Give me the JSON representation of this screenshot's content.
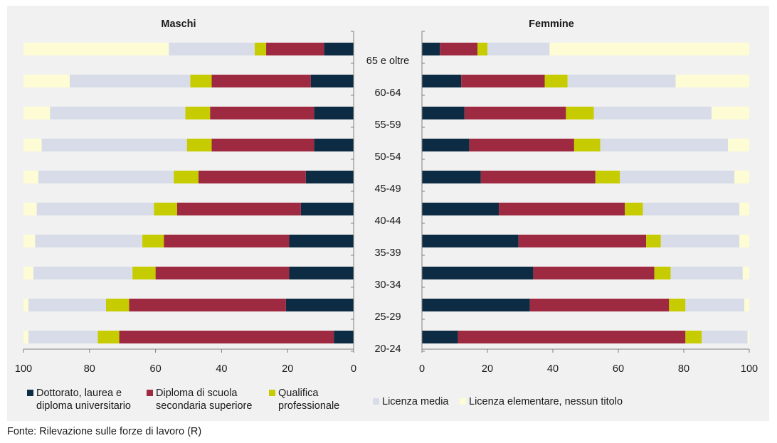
{
  "chart_data": [
    {
      "type": "bar",
      "orientation": "horizontal",
      "stacked": true,
      "title": "Maschi",
      "direction": "right-to-left",
      "categories": [
        "65 e oltre",
        "60-64",
        "55-59",
        "50-54",
        "45-49",
        "40-44",
        "35-39",
        "30-34",
        "25-29",
        "20-24"
      ],
      "xlim": [
        0,
        100
      ],
      "xticks": [
        "100",
        "80",
        "60",
        "40",
        "20",
        "0"
      ],
      "series": [
        {
          "name": "Dottorato, laurea e diploma universitario",
          "values": [
            9,
            13,
            12,
            12,
            14.5,
            16,
            19.5,
            19.5,
            20.5,
            6
          ]
        },
        {
          "name": "Diploma di scuola secondaria superiore",
          "values": [
            17.5,
            30,
            31.5,
            31,
            32.5,
            37.5,
            38,
            40.5,
            47.5,
            65
          ]
        },
        {
          "name": "Qualifica professionale",
          "values": [
            3.5,
            6.5,
            7.5,
            7.5,
            7.5,
            7,
            6.5,
            7,
            7,
            6.5
          ]
        },
        {
          "name": "Licenza media",
          "values": [
            26,
            36.5,
            41,
            44,
            41,
            35.5,
            32.5,
            30,
            23.5,
            21
          ]
        },
        {
          "name": "Licenza elementare, nessun titolo",
          "values": [
            44,
            14,
            8,
            5.5,
            4.5,
            4,
            3.5,
            3,
            1.5,
            1.5
          ]
        }
      ]
    },
    {
      "type": "bar",
      "orientation": "horizontal",
      "stacked": true,
      "title": "Femmine",
      "direction": "left-to-right",
      "categories": [
        "65 e oltre",
        "60-64",
        "55-59",
        "50-54",
        "45-49",
        "40-44",
        "35-39",
        "30-34",
        "25-29",
        "20-24"
      ],
      "xlim": [
        0,
        100
      ],
      "xticks": [
        "0",
        "20",
        "40",
        "60",
        "80",
        "100"
      ],
      "series": [
        {
          "name": "Dottorato, laurea e diploma universitario",
          "values": [
            5.5,
            12,
            13,
            14.5,
            18,
            23.5,
            29.5,
            34,
            33,
            11
          ]
        },
        {
          "name": "Diploma di scuola secondaria superiore",
          "values": [
            11.5,
            25.5,
            31,
            32,
            35,
            38.5,
            39,
            37,
            42.5,
            69.5
          ]
        },
        {
          "name": "Qualifica professionale",
          "values": [
            3,
            7,
            8.5,
            8,
            7.5,
            5.5,
            4.5,
            5,
            5,
            5
          ]
        },
        {
          "name": "Licenza media",
          "values": [
            19,
            33,
            36,
            39,
            35,
            29.5,
            24,
            22,
            18,
            14
          ]
        },
        {
          "name": "Licenza elementare, nessun titolo",
          "values": [
            61,
            22.5,
            11.5,
            6.5,
            4.5,
            3,
            3,
            2,
            1.5,
            0.5
          ]
        }
      ]
    }
  ],
  "colors": [
    "#0d2b42",
    "#9e2a41",
    "#c6cc00",
    "#d8dce9",
    "#fdfcd5"
  ],
  "legend": {
    "placement": "bottom",
    "items": [
      "Dottorato, laurea e\ndiploma universitario",
      "Diploma di scuola\nsecondaria superiore",
      "Qualifica\nprofessionale",
      "Licenza media",
      "Licenza elementare, nessun titolo"
    ]
  },
  "source": "Fonte: Rilevazione sulle forze di lavoro (R)"
}
